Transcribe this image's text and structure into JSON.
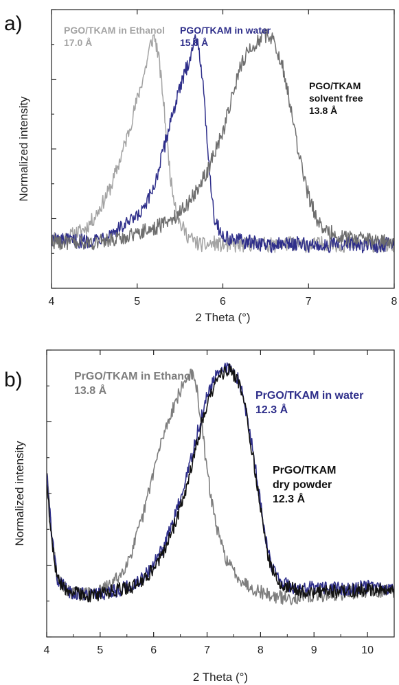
{
  "chart_data": [
    {
      "type": "line",
      "panel_label": "a)",
      "xlabel": "2 Theta (°)",
      "ylabel": "Normalized intensity",
      "xlim": [
        4,
        8
      ],
      "ylim": [
        -0.18,
        1.12
      ],
      "x_ticks": [
        4,
        5,
        6,
        7,
        8
      ],
      "y_tick_count": 9,
      "grid": false,
      "series": [
        {
          "name": "PGO/TKAM in Ethanol",
          "color": "#a3a3a3",
          "x": [
            4.0,
            4.1,
            4.2,
            4.3,
            4.4,
            4.5,
            4.6,
            4.7,
            4.8,
            4.9,
            5.0,
            5.1,
            5.15,
            5.2,
            5.25,
            5.3,
            5.35,
            5.4,
            5.5,
            5.6,
            5.7,
            5.8,
            5.9,
            6.0,
            6.2,
            6.4,
            6.6,
            6.8,
            7.0,
            7.2,
            7.4,
            7.6,
            7.8,
            8.0
          ],
          "y": [
            0.06,
            0.05,
            0.06,
            0.08,
            0.1,
            0.15,
            0.22,
            0.3,
            0.42,
            0.55,
            0.7,
            0.85,
            0.95,
            1.0,
            0.9,
            0.72,
            0.5,
            0.3,
            0.12,
            0.06,
            0.03,
            0.02,
            0.03,
            0.02,
            0.02,
            0.03,
            0.02,
            0.03,
            0.02,
            0.03,
            0.02,
            0.03,
            0.02,
            0.02
          ]
        },
        {
          "name": "PGO/TKAM in water",
          "color": "#2e2e8a",
          "x": [
            4.0,
            4.2,
            4.4,
            4.6,
            4.8,
            5.0,
            5.1,
            5.2,
            5.3,
            5.4,
            5.5,
            5.6,
            5.65,
            5.7,
            5.75,
            5.8,
            5.85,
            5.9,
            6.0,
            6.2,
            6.4,
            6.6,
            6.8,
            7.0,
            7.2,
            7.4,
            7.6,
            7.8,
            8.0
          ],
          "y": [
            0.05,
            0.04,
            0.04,
            0.06,
            0.1,
            0.15,
            0.2,
            0.3,
            0.45,
            0.62,
            0.75,
            0.88,
            0.95,
            1.0,
            0.85,
            0.6,
            0.35,
            0.15,
            0.06,
            0.04,
            0.03,
            0.02,
            0.03,
            0.02,
            0.02,
            0.03,
            0.02,
            0.02,
            0.03
          ]
        },
        {
          "name": "PGO/TKAM solvent free",
          "color": "#6e6e6e",
          "x": [
            4.0,
            4.2,
            4.4,
            4.6,
            4.8,
            5.0,
            5.2,
            5.4,
            5.6,
            5.8,
            6.0,
            6.1,
            6.2,
            6.3,
            6.4,
            6.5,
            6.6,
            6.7,
            6.8,
            6.9,
            7.0,
            7.1,
            7.2,
            7.4,
            7.6,
            7.8,
            8.0
          ],
          "y": [
            0.04,
            0.03,
            0.03,
            0.04,
            0.05,
            0.08,
            0.1,
            0.14,
            0.22,
            0.35,
            0.55,
            0.7,
            0.85,
            0.93,
            0.97,
            1.0,
            0.98,
            0.85,
            0.65,
            0.42,
            0.25,
            0.14,
            0.09,
            0.06,
            0.05,
            0.04,
            0.04
          ]
        }
      ],
      "annotations": [
        {
          "lines": [
            "PGO/TKAM in Ethanol",
            "17.0 Å"
          ],
          "color": "#a3a3a3"
        },
        {
          "lines": [
            "PGO/TKAM in water",
            "15.8 Å"
          ],
          "color": "#2e2e8a"
        },
        {
          "lines": [
            "PGO/TKAM",
            "solvent free",
            "13.8 Å"
          ],
          "color": "#111111"
        }
      ]
    },
    {
      "type": "line",
      "panel_label": "b)",
      "xlabel": "2 Theta (°)",
      "ylabel": "Normalized intensity",
      "xlim": [
        4,
        10.5
      ],
      "ylim": [
        -0.18,
        1.08
      ],
      "x_ticks": [
        4,
        5,
        6,
        7,
        8,
        9,
        10
      ],
      "y_tick_count": 9,
      "grid": false,
      "series": [
        {
          "name": "PrGO/TKAM in Ethanol",
          "color": "#7d7d7d",
          "x": [
            4.0,
            4.1,
            4.2,
            4.4,
            4.6,
            4.8,
            5.0,
            5.2,
            5.4,
            5.6,
            5.8,
            6.0,
            6.2,
            6.4,
            6.6,
            6.7,
            6.8,
            6.9,
            7.0,
            7.1,
            7.2,
            7.3,
            7.4,
            7.6,
            7.8,
            8.0,
            8.2,
            8.5,
            9.0,
            9.5,
            10.0,
            10.5
          ],
          "y": [
            0.55,
            0.25,
            0.08,
            0.02,
            0.01,
            0.01,
            0.02,
            0.05,
            0.1,
            0.2,
            0.35,
            0.55,
            0.72,
            0.85,
            0.95,
            0.98,
            0.92,
            0.75,
            0.55,
            0.4,
            0.28,
            0.2,
            0.14,
            0.08,
            0.04,
            0.02,
            0.0,
            -0.01,
            0.0,
            0.01,
            0.02,
            0.02
          ]
        },
        {
          "name": "PrGO/TKAM in water",
          "color": "#2e2e8a",
          "x": [
            4.0,
            4.1,
            4.2,
            4.4,
            4.6,
            4.8,
            5.0,
            5.2,
            5.4,
            5.6,
            5.8,
            6.0,
            6.2,
            6.4,
            6.6,
            6.8,
            7.0,
            7.2,
            7.4,
            7.6,
            7.7,
            7.8,
            7.9,
            8.0,
            8.1,
            8.2,
            8.4,
            8.6,
            8.8,
            9.0,
            9.5,
            10.0,
            10.5
          ],
          "y": [
            0.55,
            0.25,
            0.08,
            0.02,
            0.01,
            0.01,
            0.01,
            0.02,
            0.03,
            0.05,
            0.08,
            0.14,
            0.22,
            0.35,
            0.5,
            0.7,
            0.88,
            0.98,
            1.0,
            0.95,
            0.85,
            0.72,
            0.58,
            0.4,
            0.25,
            0.14,
            0.06,
            0.04,
            0.03,
            0.04,
            0.03,
            0.04,
            0.03
          ]
        },
        {
          "name": "PrGO/TKAM dry powder",
          "color": "#111111",
          "x": [
            4.0,
            4.1,
            4.2,
            4.4,
            4.6,
            4.8,
            5.0,
            5.2,
            5.4,
            5.6,
            5.8,
            6.0,
            6.2,
            6.4,
            6.6,
            6.8,
            7.0,
            7.2,
            7.4,
            7.6,
            7.7,
            7.8,
            7.9,
            8.0,
            8.1,
            8.2,
            8.4,
            8.6,
            8.8,
            9.0,
            9.5,
            10.0,
            10.5
          ],
          "y": [
            0.5,
            0.22,
            0.07,
            0.02,
            0.01,
            0.0,
            0.01,
            0.02,
            0.03,
            0.04,
            0.07,
            0.12,
            0.2,
            0.32,
            0.47,
            0.66,
            0.85,
            0.96,
            1.0,
            0.94,
            0.84,
            0.7,
            0.55,
            0.38,
            0.22,
            0.12,
            0.05,
            0.03,
            0.02,
            0.02,
            0.02,
            0.03,
            0.02
          ]
        }
      ],
      "annotations": [
        {
          "lines": [
            "PrGO/TKAM in Ethanol",
            "13.8 Å"
          ],
          "color": "#7d7d7d"
        },
        {
          "lines": [
            "PrGO/TKAM in water",
            "12.3 Å"
          ],
          "color": "#2e2e8a"
        },
        {
          "lines": [
            "PrGO/TKAM",
            "dry powder",
            "12.3 Å"
          ],
          "color": "#111111"
        }
      ]
    }
  ]
}
